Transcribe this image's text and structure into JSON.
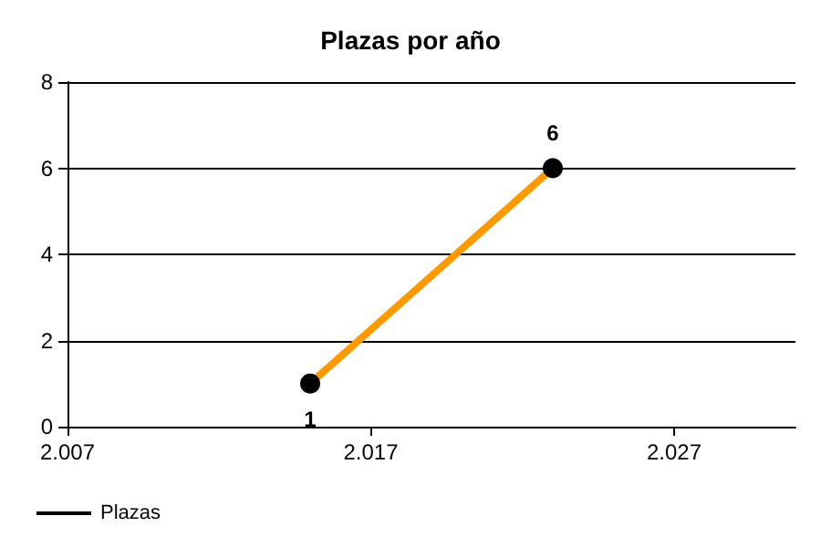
{
  "chart_data": {
    "type": "line",
    "title": "Plazas por año",
    "x": [
      2015,
      2023
    ],
    "series": [
      {
        "name": "Plazas",
        "color": "#ff9900",
        "values": [
          1,
          6
        ]
      }
    ],
    "xlim": [
      2007,
      2031
    ],
    "xticks": [
      {
        "value": 2007,
        "label": "2.007"
      },
      {
        "value": 2017,
        "label": "2.017"
      },
      {
        "value": 2027,
        "label": "2.027"
      }
    ],
    "ylim": [
      0,
      8
    ],
    "yticks": [
      0,
      2,
      4,
      6,
      8
    ],
    "grid": "y",
    "legend": "bottom left",
    "marker": "circle",
    "data_labels": true
  }
}
